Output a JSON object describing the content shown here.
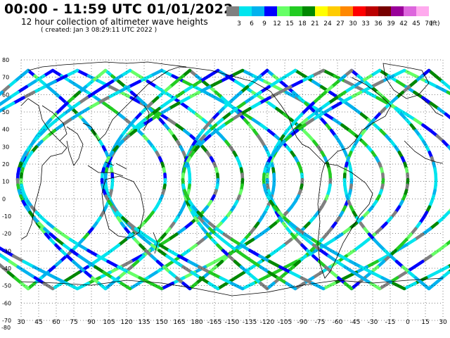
{
  "header": {
    "title": "00:00 - 11:59 UTC 01/01/2022",
    "subtitle": "12 hour collection of altimeter wave heights",
    "created": "( created: Jan  3 08:29:11 UTC 2022 )"
  },
  "legend": {
    "unit_label": "(ft)",
    "bins": [
      {
        "label": "3",
        "color": "#808080"
      },
      {
        "label": "6",
        "color": "#00e5ee"
      },
      {
        "label": "9",
        "color": "#00b2ee"
      },
      {
        "label": "12",
        "color": "#0000ff"
      },
      {
        "label": "15",
        "color": "#66ff66"
      },
      {
        "label": "18",
        "color": "#22cc22"
      },
      {
        "label": "21",
        "color": "#008800"
      },
      {
        "label": "24",
        "color": "#ffff00"
      },
      {
        "label": "27",
        "color": "#ffcc00"
      },
      {
        "label": "30",
        "color": "#ff8800"
      },
      {
        "label": "33",
        "color": "#ff0000"
      },
      {
        "label": "36",
        "color": "#bb0000"
      },
      {
        "label": "39",
        "color": "#770000"
      },
      {
        "label": "42",
        "color": "#990099"
      },
      {
        "label": "45",
        "color": "#dd66dd"
      },
      {
        "label": "70",
        "color": "#ffaaee"
      }
    ]
  },
  "map": {
    "lon_ticks": [
      "30",
      "45",
      "60",
      "75",
      "90",
      "105",
      "120",
      "135",
      "150",
      "165",
      "180",
      "-165",
      "-150",
      "-135",
      "-120",
      "-105",
      "-90",
      "-75",
      "-60",
      "-45",
      "-30",
      "-15",
      "0",
      "15",
      "30"
    ],
    "lat_ticks": [
      "80",
      "70",
      "60",
      "50",
      "40",
      "30",
      "20",
      "10",
      "0",
      "-10",
      "-20",
      "-30",
      "-40",
      "-50",
      "-60",
      "-70",
      "-80"
    ],
    "grid": true,
    "colors": {
      "land_outline": "#000000",
      "grid": "#000000"
    }
  }
}
